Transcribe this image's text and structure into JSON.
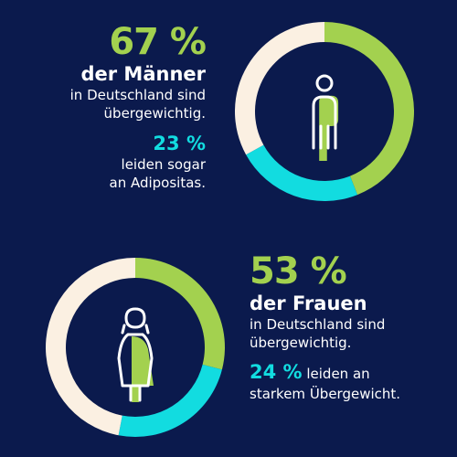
{
  "colors": {
    "background": "#0b1a4d",
    "overweight": "#a3d14f",
    "obesity": "#12dce0",
    "rest": "#fbf0e2",
    "icon_stroke": "#ffffff"
  },
  "men": {
    "big_pct": "67 %",
    "title": "der Männer",
    "line1": "in Deutschland sind",
    "line2": "übergewichtig.",
    "small_pct": "23 %",
    "line3": "leiden sogar",
    "line4": "an Adipositas.",
    "icon": "man-icon"
  },
  "women": {
    "big_pct": "53 %",
    "title": "der Frauen",
    "line1": "in Deutschland sind",
    "line2": "übergewichtig.",
    "small_pct": "24 %",
    "line3": "leiden an",
    "line4": "starkem Übergewicht.",
    "icon": "woman-icon"
  },
  "chart_data": [
    {
      "type": "pie",
      "donut": true,
      "group": "men",
      "segments": [
        {
          "value": 44,
          "color": "#a3d14f"
        },
        {
          "value": 23,
          "color": "#12dce0"
        },
        {
          "value": 33,
          "color": "#fbf0e2"
        }
      ]
    },
    {
      "type": "pie",
      "donut": true,
      "group": "women",
      "segments": [
        {
          "value": 29,
          "color": "#a3d14f"
        },
        {
          "value": 24,
          "color": "#12dce0"
        },
        {
          "value": 47,
          "color": "#fbf0e2"
        }
      ]
    }
  ]
}
